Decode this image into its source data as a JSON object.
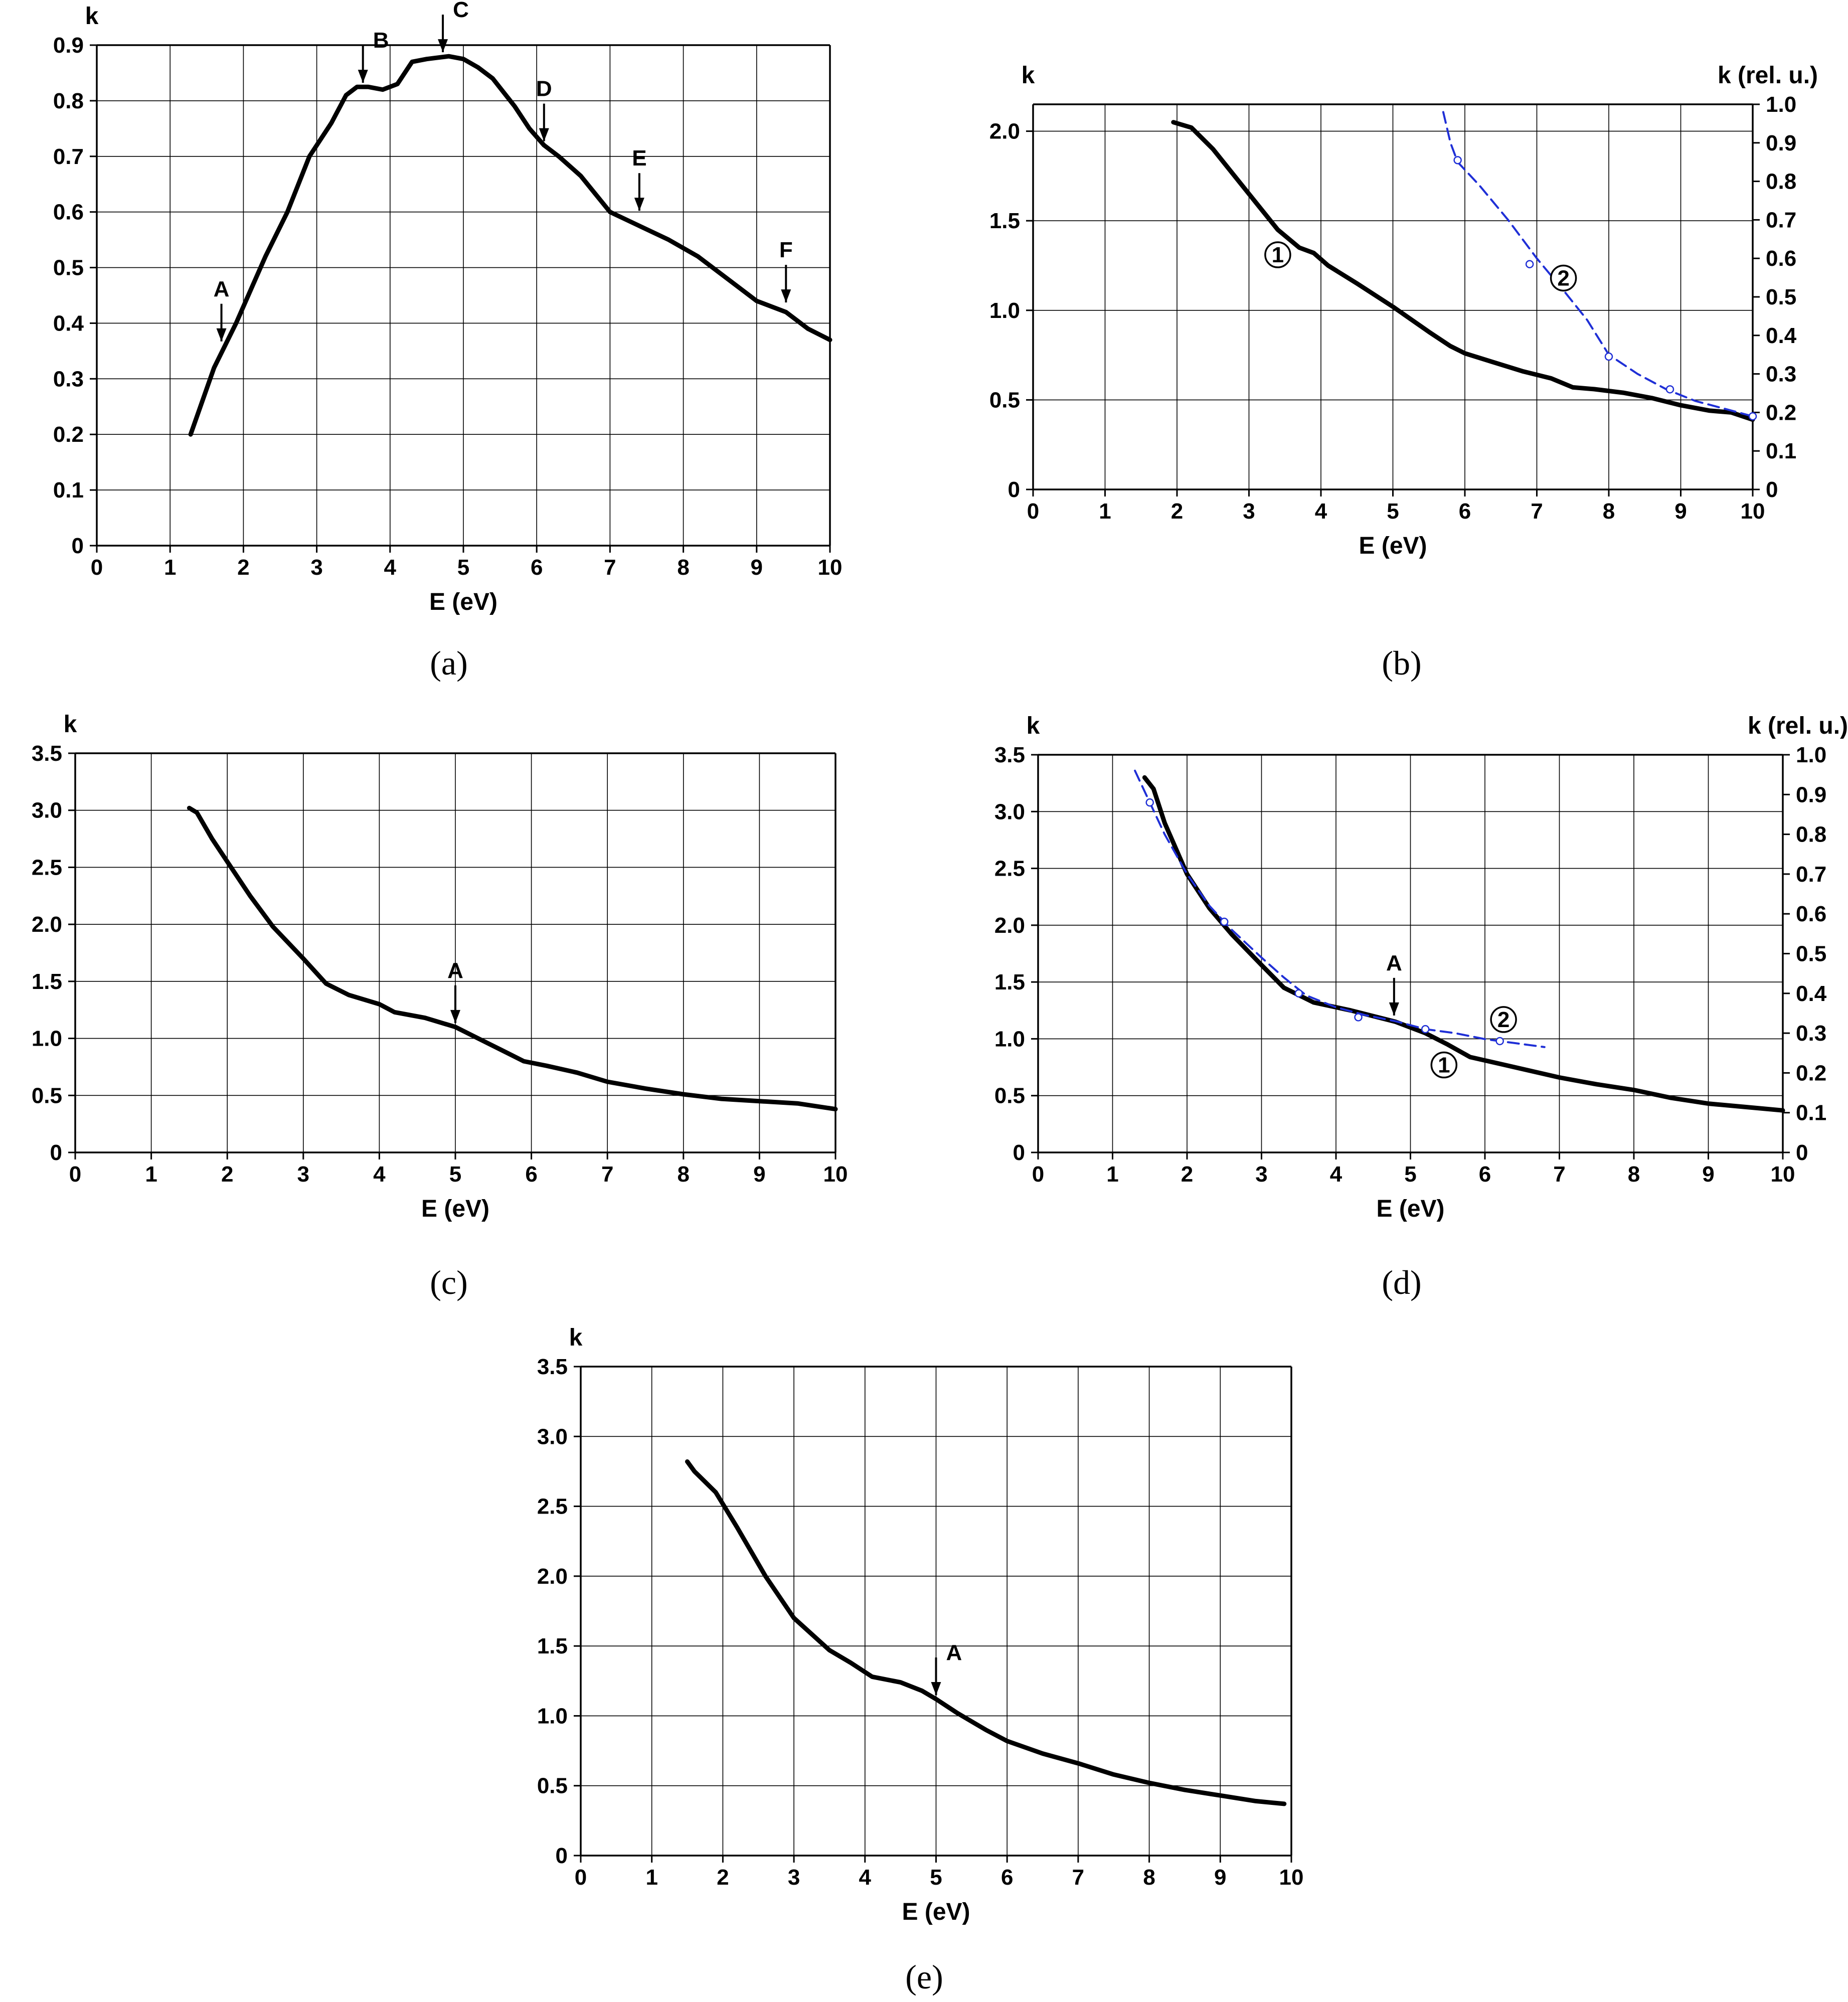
{
  "figure": {
    "panels": [
      {
        "id": "a",
        "caption": "(a)"
      },
      {
        "id": "b",
        "caption": "(b)"
      },
      {
        "id": "c",
        "caption": "(c)"
      },
      {
        "id": "d",
        "caption": "(d)"
      },
      {
        "id": "e",
        "caption": "(e)"
      }
    ]
  },
  "colors": {
    "curve1": "#000000",
    "curve2": "#1f2fd6",
    "grid": "#000000"
  },
  "chart_data": [
    {
      "panel": "a",
      "caption": "(a)",
      "type": "line",
      "xlabel": "E (eV)",
      "ylabel": "k",
      "ylabel_right": null,
      "xlim": [
        0,
        10
      ],
      "ylim": [
        0,
        0.9
      ],
      "xticks": [
        "0",
        "1",
        "2",
        "3",
        "4",
        "5",
        "6",
        "7",
        "8",
        "9",
        "10"
      ],
      "yticks": [
        "0",
        "0.1",
        "0.2",
        "0.3",
        "0.4",
        "0.5",
        "0.6",
        "0.7",
        "0.8",
        "0.9"
      ],
      "series": [
        {
          "name": "k",
          "style": "solid",
          "x": [
            1.28,
            1.6,
            1.9,
            2.1,
            2.3,
            2.6,
            2.9,
            3.2,
            3.4,
            3.55,
            3.7,
            3.9,
            4.1,
            4.3,
            4.5,
            4.8,
            5.0,
            5.2,
            5.4,
            5.7,
            5.9,
            6.1,
            6.3,
            6.6,
            7.0,
            7.4,
            7.8,
            8.2,
            8.6,
            9.0,
            9.4,
            9.7,
            10.0
          ],
          "y": [
            0.2,
            0.32,
            0.4,
            0.46,
            0.52,
            0.6,
            0.7,
            0.76,
            0.81,
            0.825,
            0.825,
            0.82,
            0.83,
            0.87,
            0.875,
            0.88,
            0.875,
            0.86,
            0.84,
            0.79,
            0.75,
            0.72,
            0.7,
            0.665,
            0.6,
            0.575,
            0.55,
            0.52,
            0.48,
            0.44,
            0.42,
            0.39,
            0.37
          ]
        }
      ],
      "annotations": [
        {
          "label": "A",
          "x": 1.7,
          "y": 0.36,
          "labelPos": "top"
        },
        {
          "label": "B",
          "x": 3.63,
          "y": 0.825,
          "labelPos": "right"
        },
        {
          "label": "C",
          "x": 4.72,
          "y": 0.88,
          "labelPos": "right"
        },
        {
          "label": "D",
          "x": 6.1,
          "y": 0.72,
          "labelPos": "top"
        },
        {
          "label": "E",
          "x": 7.4,
          "y": 0.595,
          "labelPos": "top"
        },
        {
          "label": "F",
          "x": 9.4,
          "y": 0.43,
          "labelPos": "top"
        }
      ],
      "circle_labels": []
    },
    {
      "panel": "b",
      "caption": "(b)",
      "type": "line",
      "xlabel": "E (eV)",
      "ylabel": "k",
      "ylabel_right": "k (rel. u.)",
      "xlim": [
        0,
        10
      ],
      "ylim": [
        0,
        2.15
      ],
      "ylim_right": [
        0,
        1.0
      ],
      "xticks": [
        "0",
        "1",
        "2",
        "3",
        "4",
        "5",
        "6",
        "7",
        "8",
        "9",
        "10"
      ],
      "yticks": [
        "0",
        "0.5",
        "1.0",
        "1.5",
        "2.0"
      ],
      "yticks_right": [
        "0",
        "0.1",
        "0.2",
        "0.3",
        "0.4",
        "0.5",
        "0.6",
        "0.7",
        "0.8",
        "0.9",
        "1.0"
      ],
      "series": [
        {
          "name": "1",
          "style": "solid",
          "axis": "left",
          "x": [
            1.95,
            2.2,
            2.5,
            2.8,
            3.1,
            3.4,
            3.7,
            3.9,
            4.1,
            4.5,
            5.0,
            5.5,
            5.8,
            6.0,
            6.4,
            6.8,
            7.2,
            7.5,
            7.8,
            8.2,
            8.6,
            9.0,
            9.4,
            9.7,
            10.0
          ],
          "y": [
            2.05,
            2.02,
            1.9,
            1.75,
            1.6,
            1.45,
            1.35,
            1.32,
            1.25,
            1.15,
            1.02,
            0.88,
            0.8,
            0.76,
            0.71,
            0.66,
            0.62,
            0.57,
            0.56,
            0.54,
            0.51,
            0.47,
            0.44,
            0.43,
            0.39
          ]
        },
        {
          "name": "2",
          "style": "dashed",
          "axis": "right",
          "x": [
            5.7,
            5.8,
            5.9,
            6.2,
            6.6,
            7.0,
            7.4,
            7.7,
            8.0,
            8.4,
            8.8,
            9.2,
            9.6,
            10.0
          ],
          "y": [
            0.98,
            0.9,
            0.85,
            0.79,
            0.7,
            0.6,
            0.51,
            0.44,
            0.35,
            0.3,
            0.26,
            0.23,
            0.21,
            0.19
          ]
        }
      ],
      "markers": [
        {
          "series": "2",
          "x": [
            5.9,
            6.9,
            8.0,
            8.85,
            10.0
          ],
          "y": [
            0.855,
            0.585,
            0.345,
            0.26,
            0.19
          ]
        }
      ],
      "annotations": [],
      "circle_labels": [
        {
          "label": "1",
          "x": 3.4,
          "y": 1.31
        },
        {
          "label": "2",
          "x": 7.37,
          "y": 1.18
        }
      ]
    },
    {
      "panel": "c",
      "caption": "(c)",
      "type": "line",
      "xlabel": "E (eV)",
      "ylabel": "k",
      "ylabel_right": null,
      "xlim": [
        0,
        10
      ],
      "ylim": [
        0,
        3.5
      ],
      "xticks": [
        "0",
        "1",
        "2",
        "3",
        "4",
        "5",
        "6",
        "7",
        "8",
        "9",
        "10"
      ],
      "yticks": [
        "0",
        "0.5",
        "1.0",
        "1.5",
        "2.0",
        "2.5",
        "3.0",
        "3.5"
      ],
      "series": [
        {
          "name": "k",
          "style": "solid",
          "x": [
            1.5,
            1.6,
            1.8,
            2.0,
            2.3,
            2.6,
            3.0,
            3.3,
            3.6,
            4.0,
            4.2,
            4.6,
            5.0,
            5.3,
            5.6,
            5.9,
            6.2,
            6.6,
            7.0,
            7.5,
            8.0,
            8.5,
            9.0,
            9.5,
            10.0
          ],
          "y": [
            3.02,
            2.98,
            2.75,
            2.55,
            2.25,
            1.98,
            1.7,
            1.48,
            1.38,
            1.3,
            1.23,
            1.18,
            1.1,
            1.0,
            0.9,
            0.8,
            0.76,
            0.7,
            0.62,
            0.56,
            0.51,
            0.47,
            0.45,
            0.43,
            0.38
          ]
        }
      ],
      "annotations": [
        {
          "label": "A",
          "x": 5.0,
          "y": 1.1,
          "labelPos": "top"
        }
      ],
      "circle_labels": []
    },
    {
      "panel": "d",
      "caption": "(d)",
      "type": "line",
      "xlabel": "E (eV)",
      "ylabel": "k",
      "ylabel_right": "k (rel. u.)",
      "xlim": [
        0,
        10
      ],
      "ylim": [
        0,
        3.5
      ],
      "ylim_right": [
        0,
        1.0
      ],
      "xticks": [
        "0",
        "1",
        "2",
        "3",
        "4",
        "5",
        "6",
        "7",
        "8",
        "9",
        "10"
      ],
      "yticks": [
        "0",
        "0.5",
        "1.0",
        "1.5",
        "2.0",
        "2.5",
        "3.0",
        "3.5"
      ],
      "yticks_right": [
        "0",
        "0.1",
        "0.2",
        "0.3",
        "0.4",
        "0.5",
        "0.6",
        "0.7",
        "0.8",
        "0.9",
        "1.0"
      ],
      "series": [
        {
          "name": "1",
          "style": "solid",
          "axis": "left",
          "x": [
            1.43,
            1.55,
            1.7,
            2.0,
            2.3,
            2.6,
            3.0,
            3.3,
            3.7,
            4.2,
            4.8,
            5.2,
            5.5,
            5.8,
            6.2,
            6.6,
            7.0,
            7.5,
            8.0,
            8.5,
            9.0,
            9.5,
            10.0
          ],
          "y": [
            3.3,
            3.2,
            2.9,
            2.45,
            2.15,
            1.92,
            1.65,
            1.45,
            1.32,
            1.25,
            1.15,
            1.05,
            0.95,
            0.84,
            0.78,
            0.72,
            0.66,
            0.6,
            0.55,
            0.48,
            0.43,
            0.4,
            0.37
          ]
        },
        {
          "name": "2",
          "style": "dashed",
          "axis": "right",
          "x": [
            1.3,
            1.5,
            1.7,
            2.0,
            2.3,
            2.6,
            3.0,
            3.3,
            3.6,
            4.0,
            4.4,
            4.8,
            5.2,
            5.6,
            6.0,
            6.4,
            6.8
          ],
          "y": [
            0.96,
            0.88,
            0.8,
            0.7,
            0.62,
            0.56,
            0.49,
            0.44,
            0.395,
            0.365,
            0.345,
            0.33,
            0.31,
            0.3,
            0.285,
            0.275,
            0.265
          ]
        }
      ],
      "markers": [
        {
          "series": "2",
          "x": [
            1.5,
            2.5,
            3.5,
            4.3,
            5.2,
            6.2
          ],
          "y": [
            0.88,
            0.58,
            0.4,
            0.34,
            0.31,
            0.28
          ]
        }
      ],
      "annotations": [
        {
          "label": "A",
          "x": 4.78,
          "y": 1.17,
          "labelPos": "top"
        }
      ],
      "circle_labels": [
        {
          "label": "2",
          "x": 6.25,
          "y": 1.17
        },
        {
          "label": "1",
          "x": 5.45,
          "y": 0.77
        }
      ]
    },
    {
      "panel": "e",
      "caption": "(e)",
      "type": "line",
      "xlabel": "E (eV)",
      "ylabel": "k",
      "ylabel_right": null,
      "xlim": [
        0,
        10
      ],
      "ylim": [
        0,
        3.5
      ],
      "xticks": [
        "0",
        "1",
        "2",
        "3",
        "4",
        "5",
        "6",
        "7",
        "8",
        "9",
        "10"
      ],
      "yticks": [
        "0",
        "0.5",
        "1.0",
        "1.5",
        "2.0",
        "2.5",
        "3.0",
        "3.5"
      ],
      "series": [
        {
          "name": "k",
          "style": "solid",
          "x": [
            1.5,
            1.6,
            1.9,
            2.2,
            2.6,
            3.0,
            3.5,
            3.8,
            4.1,
            4.5,
            4.8,
            5.0,
            5.3,
            5.7,
            6.0,
            6.5,
            7.0,
            7.5,
            8.0,
            8.5,
            9.0,
            9.5,
            9.9
          ],
          "y": [
            2.82,
            2.75,
            2.6,
            2.35,
            2.0,
            1.7,
            1.47,
            1.38,
            1.28,
            1.24,
            1.18,
            1.12,
            1.02,
            0.9,
            0.82,
            0.73,
            0.66,
            0.58,
            0.52,
            0.47,
            0.43,
            0.39,
            0.37
          ]
        }
      ],
      "annotations": [
        {
          "label": "A",
          "x": 5.0,
          "y": 1.12,
          "labelPos": "right"
        }
      ],
      "circle_labels": []
    }
  ]
}
